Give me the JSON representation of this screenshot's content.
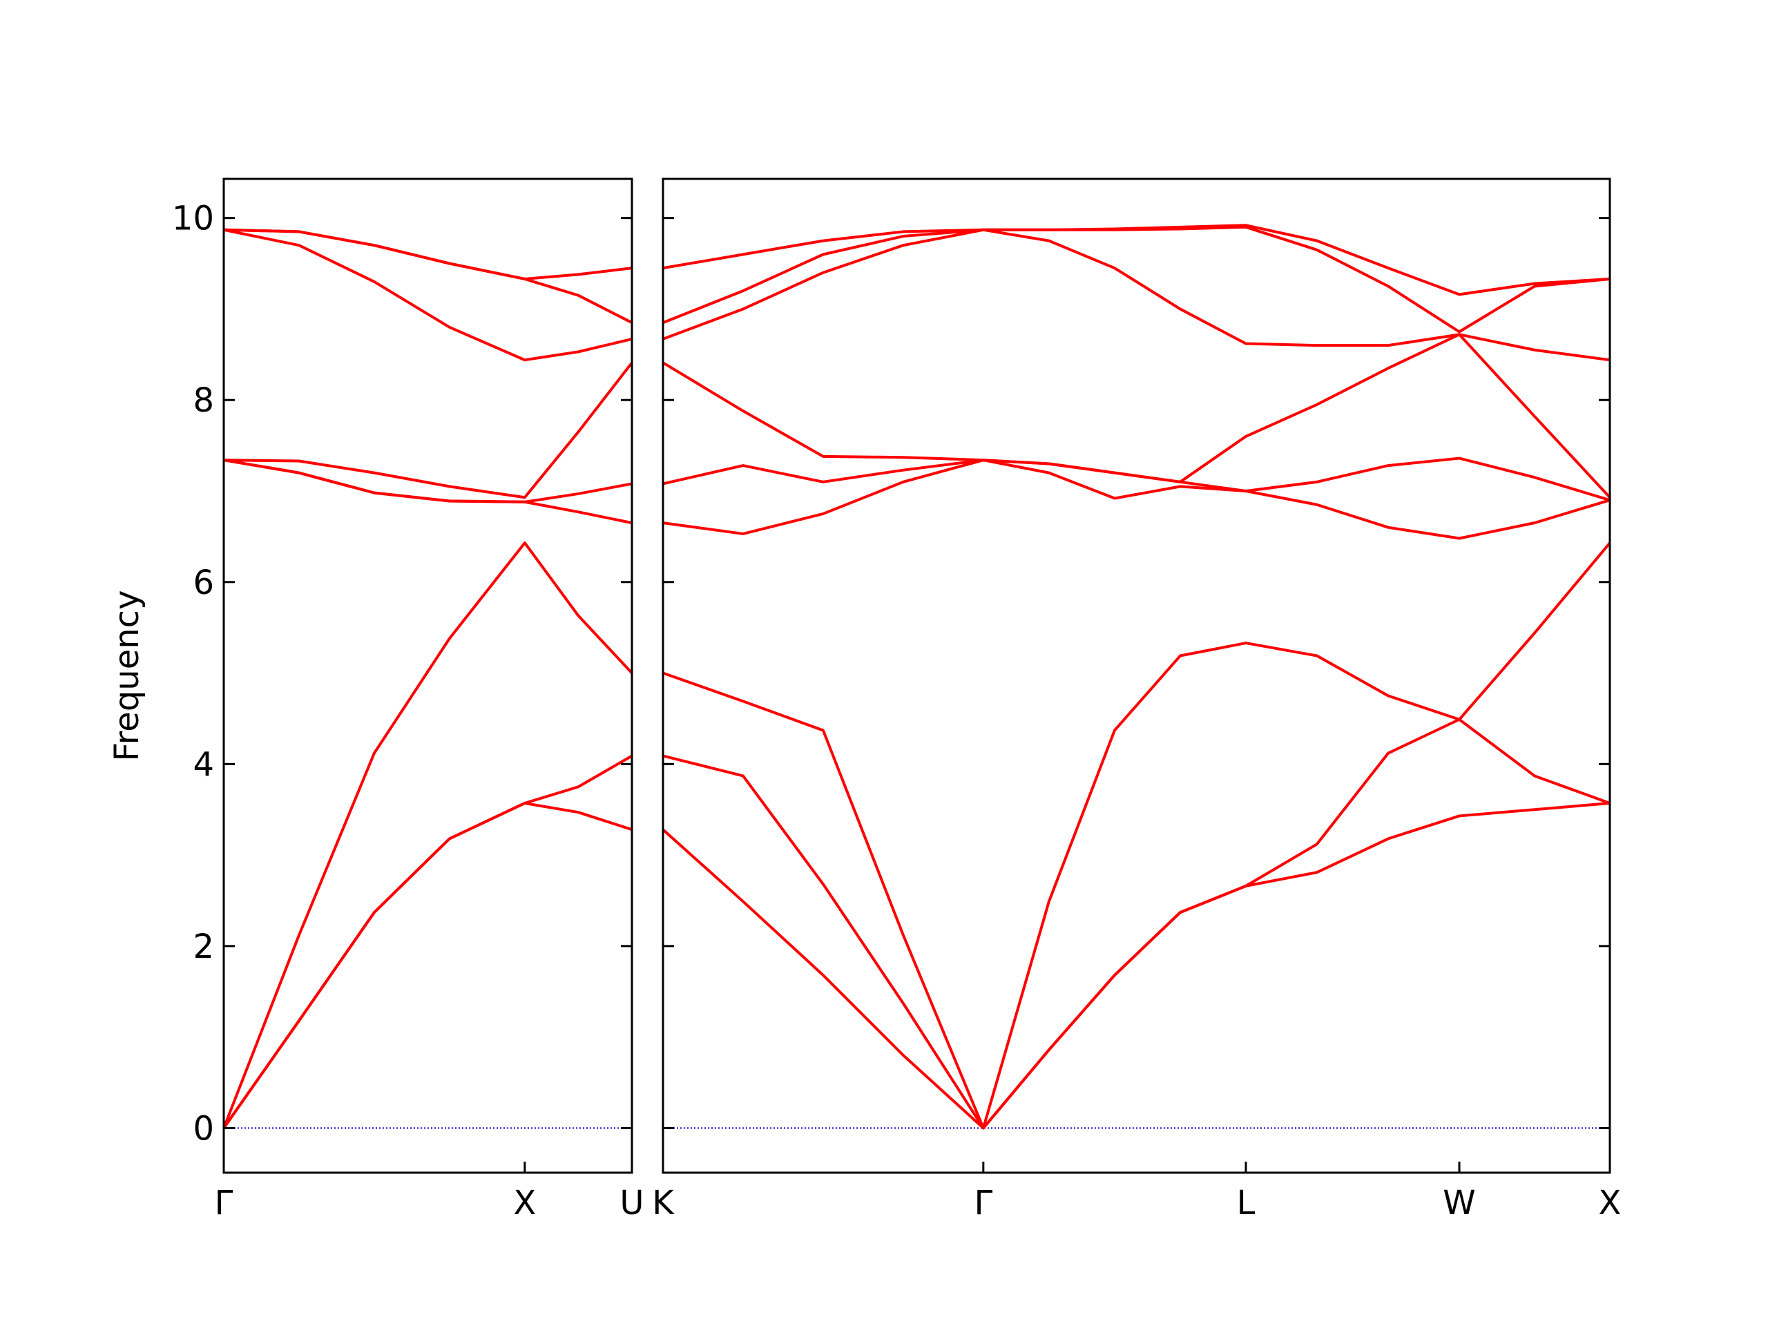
{
  "chart_data": [
    {
      "type": "line",
      "ylabel": "Frequency",
      "color": "#ff0000",
      "ytick_labels": true,
      "axhline": 0,
      "axhline_color": "#0000cc",
      "xlim": [
        0,
        1.356
      ],
      "ylim": [
        -0.49,
        10.43
      ],
      "xticks": [
        {
          "value": 0,
          "label": "Γ"
        },
        {
          "value": 1,
          "label": "X"
        },
        {
          "value": 1.356,
          "label": "U"
        }
      ],
      "yticks": [
        0,
        2,
        4,
        6,
        8,
        10
      ],
      "x": [
        0,
        0.25,
        0.5,
        0.75,
        1,
        1.178,
        1.356
      ],
      "series": [
        {
          "values": [
            0,
            1.18,
            2.37,
            3.18,
            3.57,
            3.47,
            3.28
          ]
        },
        {
          "values": [
            0,
            1.18,
            2.37,
            3.18,
            3.57,
            3.75,
            4.09
          ]
        },
        {
          "values": [
            0,
            2.12,
            4.12,
            5.38,
            6.43,
            5.63,
            5.0
          ]
        },
        {
          "values": [
            7.34,
            7.2,
            6.98,
            6.89,
            6.88,
            6.77,
            6.65
          ]
        },
        {
          "values": [
            7.34,
            7.2,
            6.98,
            6.89,
            6.88,
            6.97,
            7.08
          ]
        },
        {
          "values": [
            7.34,
            7.33,
            7.2,
            7.05,
            6.93,
            7.65,
            8.41
          ]
        },
        {
          "values": [
            9.87,
            9.7,
            9.3,
            8.8,
            8.44,
            8.53,
            8.67
          ]
        },
        {
          "values": [
            9.87,
            9.85,
            9.7,
            9.5,
            9.33,
            9.15,
            8.85
          ]
        },
        {
          "values": [
            9.87,
            9.85,
            9.7,
            9.5,
            9.33,
            9.38,
            9.45
          ]
        }
      ]
    },
    {
      "type": "line",
      "color": "#ff0000",
      "ytick_labels": false,
      "axhline": 0,
      "axhline_color": "#0000cc",
      "xlim": [
        0,
        3.145
      ],
      "ylim": [
        -0.49,
        10.43
      ],
      "xticks": [
        {
          "value": 0,
          "label": "K"
        },
        {
          "value": 1.064,
          "label": "Γ"
        },
        {
          "value": 1.936,
          "label": "L"
        },
        {
          "value": 2.645,
          "label": "W"
        },
        {
          "value": 3.145,
          "label": "X"
        }
      ],
      "yticks": [
        0,
        2,
        4,
        6,
        8,
        10
      ],
      "x": [
        0,
        0.266,
        0.532,
        0.798,
        1.064,
        1.282,
        1.5,
        1.718,
        1.936,
        2.172,
        2.409,
        2.645,
        2.895,
        3.145
      ],
      "series": [
        {
          "values": [
            3.28,
            2.49,
            1.68,
            0.8,
            0,
            0.86,
            1.68,
            2.37,
            2.66,
            2.81,
            3.18,
            3.43,
            3.5,
            3.57
          ]
        },
        {
          "values": [
            4.09,
            3.87,
            2.68,
            1.37,
            0,
            0.86,
            1.68,
            2.37,
            2.66,
            3.12,
            4.12,
            4.49,
            3.87,
            3.57
          ]
        },
        {
          "values": [
            5.0,
            4.69,
            4.37,
            2.12,
            0,
            2.49,
            4.37,
            5.19,
            5.33,
            5.19,
            4.75,
            4.49,
            5.44,
            6.43
          ]
        },
        {
          "values": [
            6.65,
            6.53,
            6.75,
            7.1,
            7.34,
            7.2,
            6.92,
            7.05,
            7.0,
            6.85,
            6.6,
            6.48,
            6.65,
            6.9
          ]
        },
        {
          "values": [
            7.08,
            7.28,
            7.1,
            7.23,
            7.34,
            7.3,
            7.2,
            7.1,
            7.0,
            7.1,
            7.28,
            7.36,
            7.15,
            6.9
          ]
        },
        {
          "values": [
            8.41,
            7.88,
            7.38,
            7.37,
            7.34,
            7.3,
            7.2,
            7.1,
            7.6,
            7.95,
            8.35,
            8.72,
            7.82,
            6.93
          ]
        },
        {
          "values": [
            8.67,
            9.0,
            9.4,
            9.7,
            9.87,
            9.75,
            9.45,
            9.0,
            8.62,
            8.6,
            8.6,
            8.72,
            8.55,
            8.44
          ]
        },
        {
          "values": [
            8.85,
            9.2,
            9.6,
            9.8,
            9.87,
            9.87,
            9.87,
            9.88,
            9.9,
            9.65,
            9.25,
            8.75,
            9.25,
            9.33
          ]
        },
        {
          "values": [
            9.45,
            9.6,
            9.75,
            9.85,
            9.87,
            9.87,
            9.88,
            9.9,
            9.92,
            9.75,
            9.45,
            9.16,
            9.28,
            9.33
          ]
        }
      ]
    }
  ]
}
